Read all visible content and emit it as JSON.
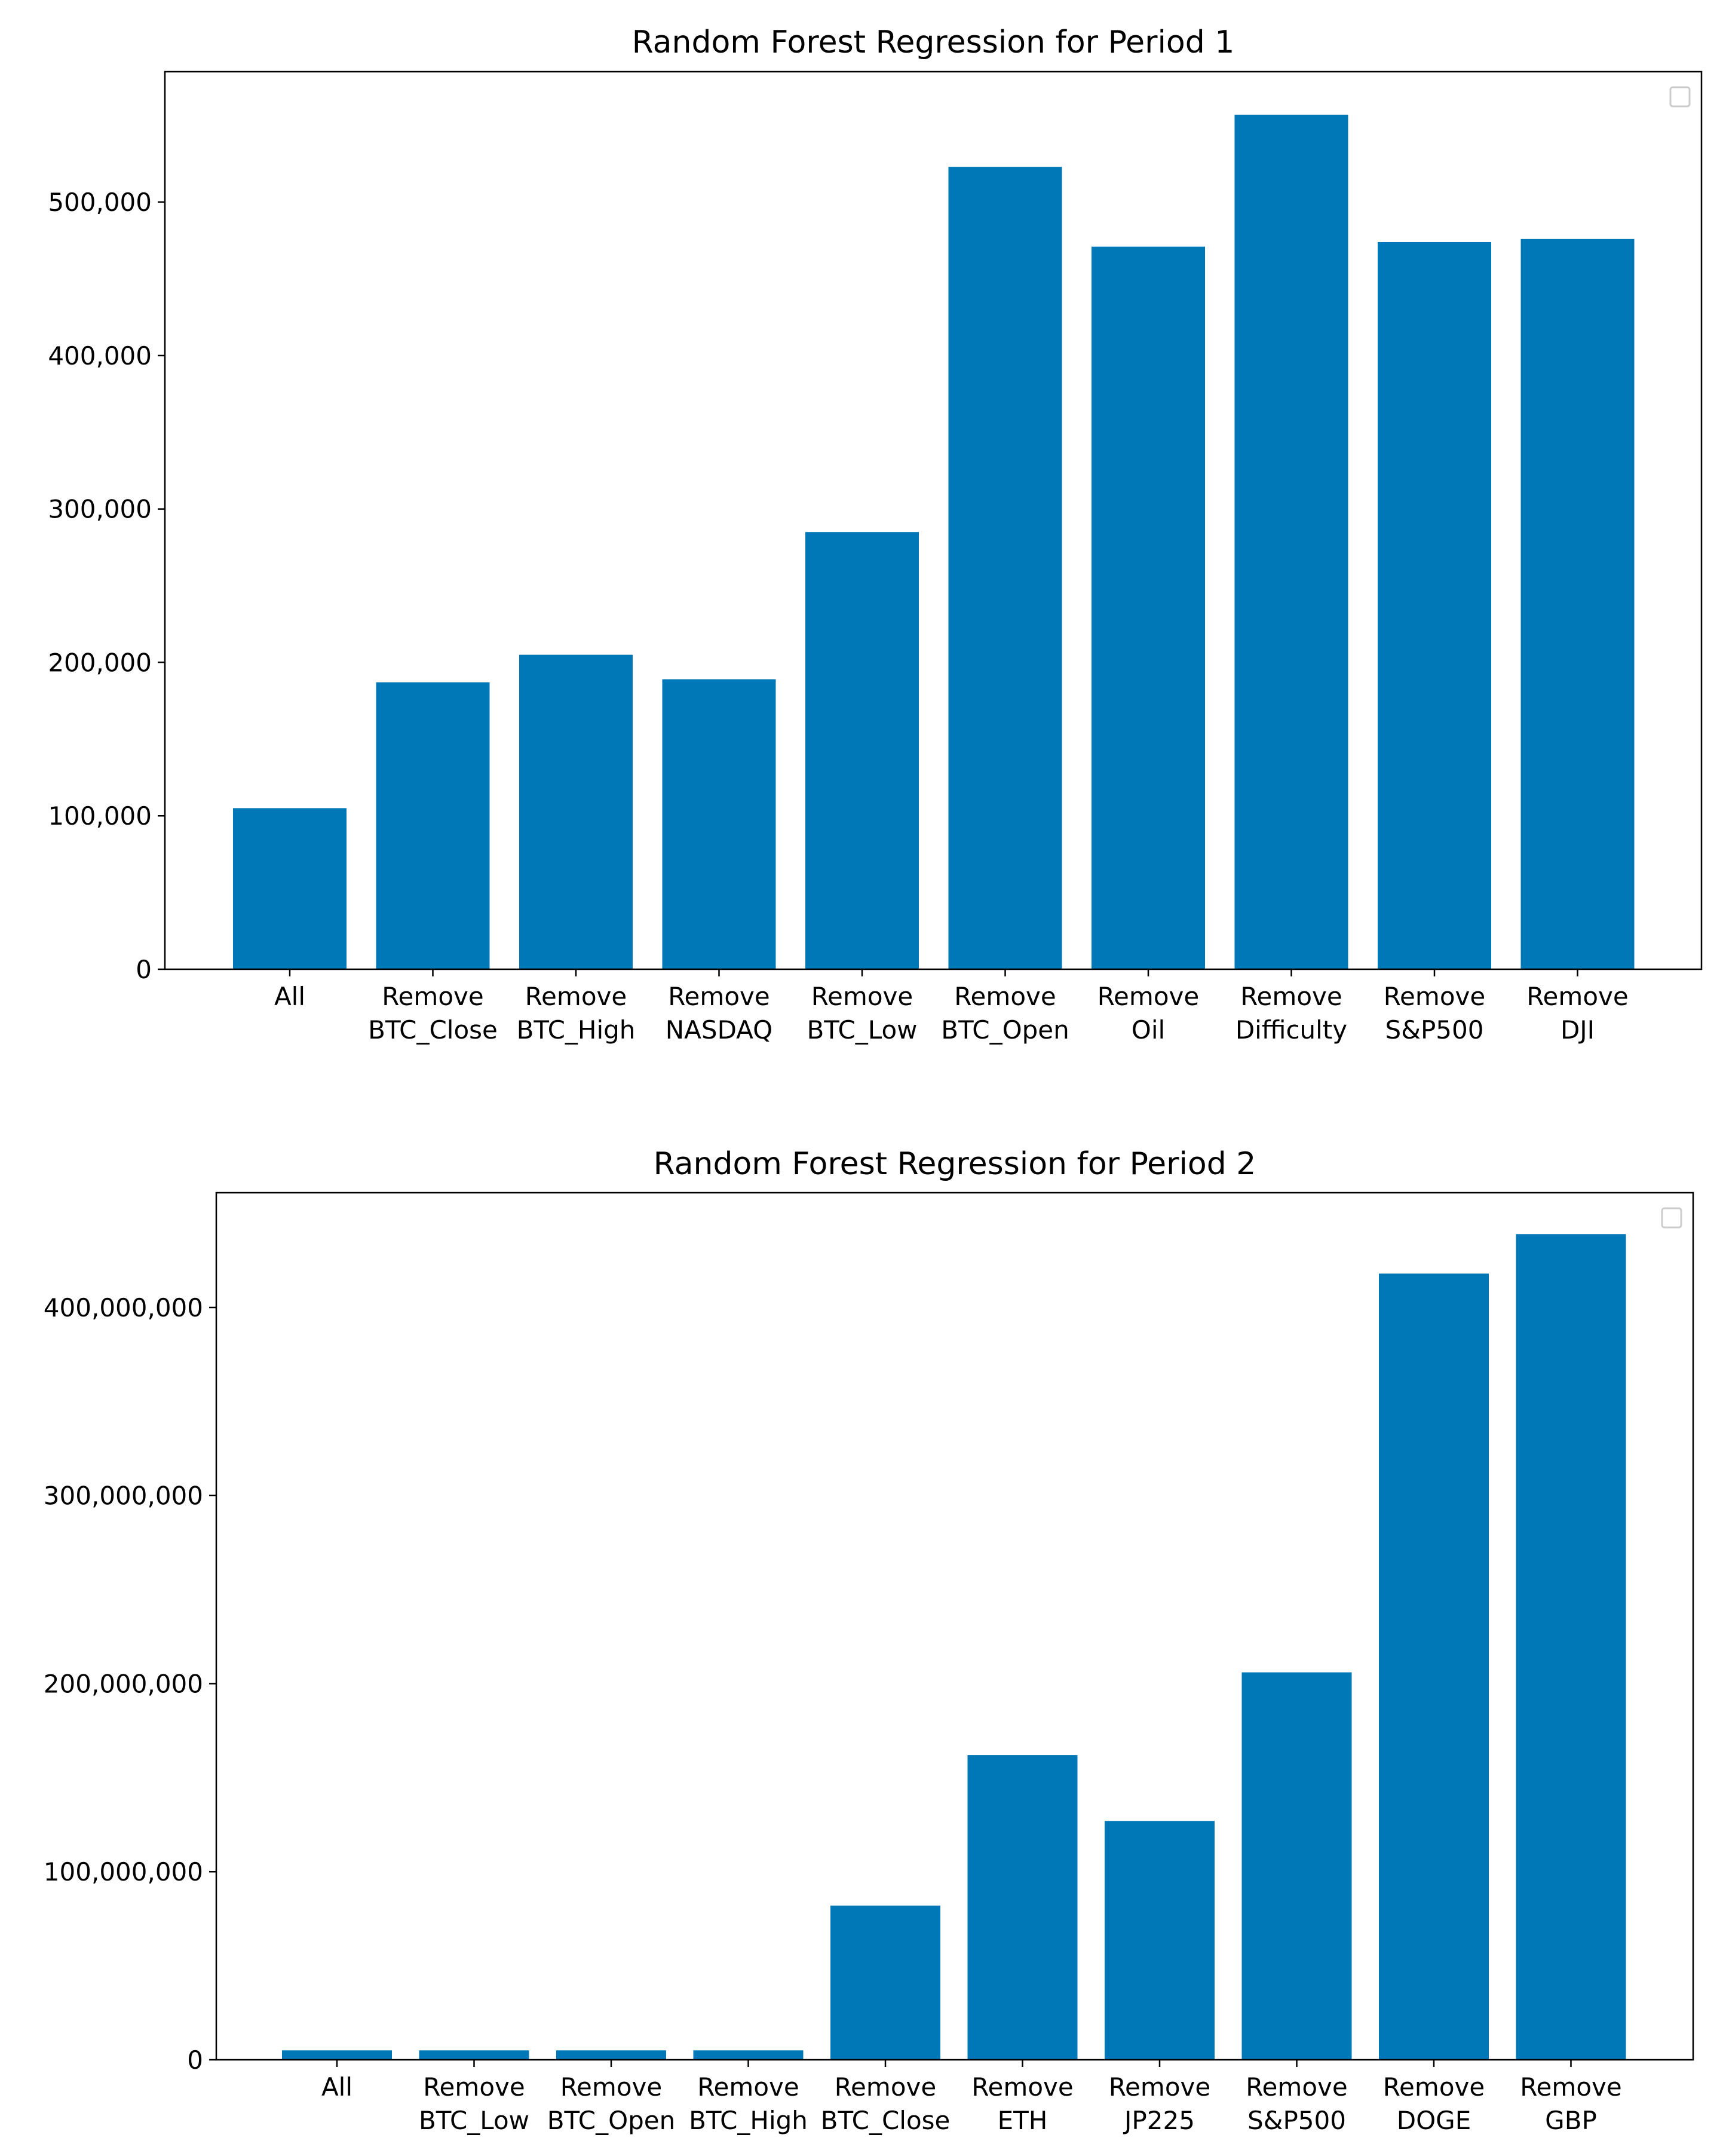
{
  "chart_data": [
    {
      "type": "bar",
      "title": "Random Forest Regression for Period 1",
      "xlabel": "",
      "ylabel": "",
      "categories": [
        [
          "All"
        ],
        [
          "Remove",
          "BTC_Close"
        ],
        [
          "Remove",
          "BTC_High"
        ],
        [
          "Remove",
          "NASDAQ"
        ],
        [
          "Remove",
          "BTC_Low"
        ],
        [
          "Remove",
          "BTC_Open"
        ],
        [
          "Remove",
          "Oil"
        ],
        [
          "Remove",
          "Difficulty"
        ],
        [
          "Remove",
          "S&P500"
        ],
        [
          "Remove",
          "DJI"
        ]
      ],
      "values": [
        105000,
        187000,
        205000,
        189000,
        285000,
        523000,
        471000,
        557000,
        474000,
        476000
      ],
      "ylim": [
        0,
        585000
      ],
      "yticks": [
        0,
        100000,
        200000,
        300000,
        400000,
        500000
      ],
      "ytick_labels": [
        "0",
        "100,000",
        "200,000",
        "300,000",
        "400,000",
        "500,000"
      ],
      "bar_color": "#0077b6",
      "legend": "empty box, top-right",
      "grid": false
    },
    {
      "type": "bar",
      "title": "Random Forest Regression for Period 2",
      "xlabel": "",
      "ylabel": "",
      "categories": [
        [
          "All"
        ],
        [
          "Remove",
          "BTC_Low"
        ],
        [
          "Remove",
          "BTC_Open"
        ],
        [
          "Remove",
          "BTC_High"
        ],
        [
          "Remove",
          "BTC_Close"
        ],
        [
          "Remove",
          "ETH"
        ],
        [
          "Remove",
          "JP225"
        ],
        [
          "Remove",
          "S&P500"
        ],
        [
          "Remove",
          "DOGE"
        ],
        [
          "Remove",
          "GBP"
        ]
      ],
      "values": [
        5000000,
        5000000,
        5000000,
        5000000,
        82000000,
        162000000,
        127000000,
        206000000,
        418000000,
        439000000
      ],
      "ylim": [
        0,
        461000000
      ],
      "yticks": [
        0,
        100000000,
        200000000,
        300000000,
        400000000
      ],
      "ytick_labels": [
        "0",
        "100,000,000",
        "200,000,000",
        "300,000,000",
        "400,000,000"
      ],
      "bar_color": "#0077b6",
      "legend": "empty box, top-right",
      "grid": false
    }
  ]
}
